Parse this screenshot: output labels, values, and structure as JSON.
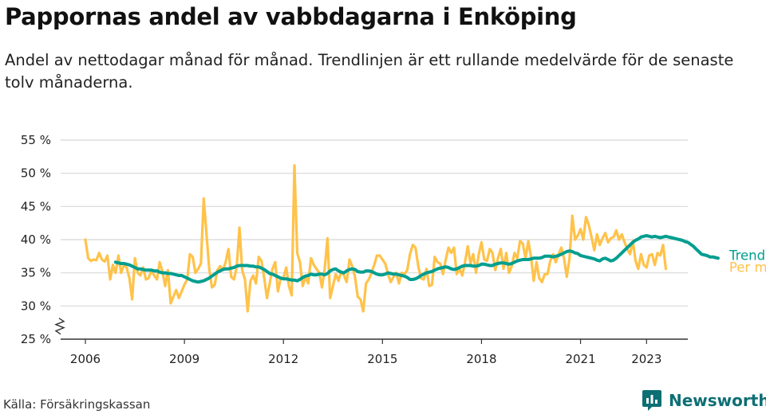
{
  "header": {
    "title": "Pappornas andel av vabbdagarna i Enköping",
    "subtitle": "Andel av nettodagar månad för månad. Trendlinjen är ett rullande medelvärde för de senaste tolv månaderna."
  },
  "footer": {
    "source": "Källa: Försäkringskassan",
    "brand": "Newsworthy"
  },
  "colors": {
    "monthly": "#ffc24a",
    "trend": "#009e8f",
    "grid": "#d8d8d8",
    "axis": "#333333",
    "brand": "#0c6f74"
  },
  "chart_data": {
    "type": "line",
    "title": "Pappornas andel av vabbdagarna i Enköping",
    "xlabel": "",
    "ylabel": "",
    "ylim": [
      25,
      55
    ],
    "x_ticks": [
      2006,
      2009,
      2012,
      2015,
      2018,
      2021,
      2023
    ],
    "y_ticks": [
      {
        "value": 25,
        "label": "25 %"
      },
      {
        "value": 30,
        "label": "30 %"
      },
      {
        "value": 35,
        "label": "35 %"
      },
      {
        "value": 40,
        "label": "40 %"
      },
      {
        "value": 45,
        "label": "45 %"
      },
      {
        "value": 50,
        "label": "50 %"
      },
      {
        "value": 55,
        "label": "55 %"
      }
    ],
    "axis_break": true,
    "grid": true,
    "series": [
      {
        "name": "Per månad",
        "start": 2006.0,
        "step": 0.0833333,
        "values": [
          40.0,
          37.2,
          36.8,
          37.0,
          36.9,
          38.0,
          37.0,
          36.7,
          37.6,
          34.0,
          36.2,
          35.0,
          37.6,
          35.0,
          36.2,
          35.8,
          34.2,
          31.0,
          37.2,
          35.0,
          34.6,
          35.8,
          34.0,
          34.2,
          35.4,
          34.6,
          34.0,
          36.6,
          35.2,
          33.0,
          35.4,
          30.4,
          31.4,
          32.4,
          31.2,
          32.2,
          33.2,
          34.0,
          37.8,
          37.4,
          35.0,
          35.6,
          36.4,
          46.2,
          41.0,
          35.6,
          32.8,
          33.2,
          35.4,
          36.0,
          35.4,
          36.6,
          38.6,
          34.4,
          34.0,
          35.8,
          41.8,
          35.4,
          34.0,
          29.2,
          33.8,
          34.6,
          33.4,
          37.4,
          36.8,
          34.2,
          31.2,
          33.4,
          35.6,
          36.6,
          32.2,
          34.2,
          34.2,
          35.8,
          33.0,
          31.6,
          51.2,
          38.0,
          36.6,
          33.0,
          34.4,
          33.4,
          37.2,
          36.2,
          35.6,
          35.0,
          32.8,
          35.6,
          40.2,
          31.2,
          33.0,
          34.8,
          33.8,
          35.2,
          34.6,
          33.6,
          37.0,
          36.0,
          34.4,
          31.4,
          31.0,
          29.2,
          33.4,
          34.0,
          35.0,
          36.2,
          37.6,
          37.6,
          37.0,
          36.4,
          34.8,
          33.6,
          34.4,
          35.0,
          33.4,
          35.0,
          34.8,
          35.4,
          37.8,
          39.2,
          38.8,
          36.0,
          34.2,
          34.0,
          35.6,
          33.0,
          33.2,
          37.4,
          36.6,
          36.4,
          34.8,
          37.0,
          38.8,
          38.0,
          38.8,
          34.8,
          35.6,
          34.6,
          36.6,
          39.0,
          36.4,
          37.8,
          35.0,
          37.8,
          39.6,
          37.0,
          36.8,
          38.6,
          38.0,
          35.4,
          37.2,
          38.6,
          35.6,
          38.0,
          35.0,
          36.0,
          38.0,
          37.2,
          39.8,
          39.4,
          37.2,
          39.8,
          37.4,
          33.8,
          36.6,
          34.2,
          33.6,
          34.8,
          34.8,
          36.8,
          37.8,
          36.6,
          37.8,
          38.8,
          37.2,
          34.4,
          37.2,
          43.6,
          40.0,
          40.6,
          41.6,
          40.0,
          43.4,
          42.2,
          40.4,
          38.4,
          40.8,
          39.2,
          40.2,
          41.0,
          39.6,
          40.2,
          40.4,
          41.4,
          40.0,
          40.8,
          39.6,
          38.6,
          37.8,
          39.8,
          36.8,
          35.6,
          37.8,
          36.2,
          35.8,
          37.6,
          37.8,
          36.2,
          38.0,
          37.6,
          39.2,
          35.6
        ]
      },
      {
        "name": "Trend",
        "start": 2006.9167,
        "step": 0.0833333,
        "values": [
          36.6,
          36.5,
          36.4,
          36.4,
          36.3,
          36.2,
          36.0,
          35.8,
          35.6,
          35.6,
          35.5,
          35.4,
          35.4,
          35.4,
          35.3,
          35.3,
          35.1,
          35.0,
          35.0,
          34.9,
          34.9,
          34.8,
          34.7,
          34.6,
          34.6,
          34.4,
          34.2,
          34.0,
          33.8,
          33.7,
          33.6,
          33.7,
          33.8,
          34.0,
          34.2,
          34.5,
          34.8,
          35.1,
          35.3,
          35.5,
          35.6,
          35.6,
          35.7,
          35.8,
          36.0,
          36.1,
          36.1,
          36.1,
          36.1,
          36.0,
          36.0,
          35.9,
          35.9,
          35.7,
          35.5,
          35.2,
          34.9,
          34.8,
          34.6,
          34.4,
          34.2,
          34.1,
          34.1,
          34.0,
          33.9,
          33.9,
          33.8,
          34.0,
          34.3,
          34.5,
          34.6,
          34.8,
          34.7,
          34.7,
          34.8,
          34.8,
          34.7,
          34.9,
          35.3,
          35.5,
          35.6,
          35.3,
          35.1,
          35.0,
          35.3,
          35.5,
          35.6,
          35.5,
          35.2,
          35.1,
          35.1,
          35.3,
          35.3,
          35.2,
          35.0,
          34.8,
          34.7,
          34.7,
          34.8,
          35.0,
          34.9,
          34.8,
          34.8,
          34.7,
          34.6,
          34.5,
          34.3,
          34.0,
          34.0,
          34.1,
          34.3,
          34.6,
          34.8,
          35.0,
          35.1,
          35.2,
          35.4,
          35.6,
          35.7,
          35.8,
          35.9,
          35.8,
          35.6,
          35.5,
          35.6,
          35.8,
          36.0,
          36.1,
          36.1,
          36.1,
          36.0,
          36.0,
          36.1,
          36.3,
          36.3,
          36.2,
          36.1,
          36.1,
          36.3,
          36.4,
          36.5,
          36.5,
          36.4,
          36.3,
          36.4,
          36.6,
          36.8,
          36.9,
          37.0,
          37.0,
          37.0,
          37.1,
          37.2,
          37.2,
          37.2,
          37.3,
          37.5,
          37.5,
          37.5,
          37.4,
          37.5,
          37.6,
          37.8,
          38.0,
          38.2,
          38.3,
          38.2,
          38.0,
          37.9,
          37.6,
          37.5,
          37.4,
          37.3,
          37.2,
          37.1,
          36.9,
          36.8,
          37.1,
          37.2,
          37.0,
          36.8,
          36.9,
          37.2,
          37.6,
          38.0,
          38.4,
          38.8,
          39.2,
          39.6,
          39.9,
          40.1,
          40.4,
          40.5,
          40.6,
          40.5,
          40.4,
          40.5,
          40.4,
          40.3,
          40.4,
          40.5,
          40.4,
          40.3,
          40.2,
          40.1,
          40.0,
          39.9,
          39.7,
          39.6,
          39.3,
          39.0,
          38.6,
          38.2,
          37.8,
          37.7,
          37.6,
          37.4,
          37.4,
          37.3,
          37.2
        ]
      }
    ]
  }
}
